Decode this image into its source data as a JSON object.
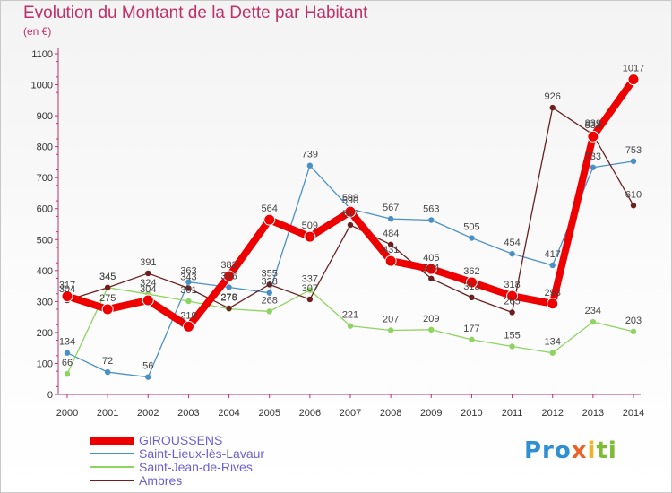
{
  "title": "Evolution du Montant de la Dette par Habitant",
  "unit": "(en €)",
  "brand": {
    "parts": [
      {
        "text": "Pro",
        "color": "#2f8fd3"
      },
      {
        "text": "x",
        "color": "#e9642b"
      },
      {
        "text": "i",
        "color": "#f0b323"
      },
      {
        "text": "ti",
        "color": "#7dbb35"
      }
    ]
  },
  "chart_data": {
    "type": "line",
    "title": "Evolution du Montant de la Dette par Habitant",
    "ylabel": "(en €)",
    "xlabel": "",
    "x": [
      "2000",
      "2001",
      "2002",
      "2003",
      "2004",
      "2005",
      "2006",
      "2007",
      "2008",
      "2009",
      "2010",
      "2011",
      "2012",
      "2013",
      "2014"
    ],
    "ylim": [
      0,
      1100
    ],
    "yticks": [
      0,
      100,
      200,
      300,
      400,
      500,
      600,
      700,
      800,
      900,
      1000,
      1100
    ],
    "grid": false,
    "legend_position": "bottom-left",
    "series": [
      {
        "name": "Saint-Lieux-lès-Lavaur",
        "color": "#4a90c8",
        "values": [
          134,
          72,
          56,
          363,
          346,
          328,
          739,
          599,
          567,
          563,
          505,
          454,
          417,
          733,
          753
        ]
      },
      {
        "name": "Saint-Jean-de-Rives",
        "color": "#8ed461",
        "values": [
          66,
          345,
          324,
          301,
          276,
          268,
          337,
          221,
          207,
          209,
          177,
          155,
          134,
          234,
          203
        ]
      },
      {
        "name": "Ambres",
        "color": "#6b1f1f",
        "values": [
          304,
          345,
          391,
          343,
          278,
          355,
          307,
          547,
          484,
          374,
          313,
          265,
          926,
          839,
          610
        ]
      },
      {
        "name": "GIROUSSENS",
        "color": "#ee0000",
        "values": [
          317,
          275,
          304,
          219,
          382,
          564,
          509,
          590,
          431,
          405,
          362,
          318,
          293,
          833,
          1017
        ]
      }
    ]
  }
}
